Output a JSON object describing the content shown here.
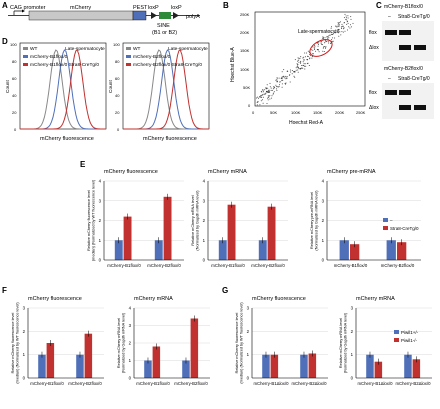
{
  "panel_letters": [
    "A",
    "B",
    "C",
    "D",
    "E",
    "F",
    "G"
  ],
  "colors": {
    "blue": "#4f6fb8",
    "red": "#c0312f",
    "green": "#2e8b3a",
    "grey": "#888888"
  },
  "panelA": {
    "promoter": "CAG promoter",
    "mcherry": "mCherry",
    "pest": "PEST",
    "loxp1": "loxP",
    "loxp2": "loxP",
    "polya": "polyA",
    "sine_line1": "SINE",
    "sine_line2": "(B1 or B2)"
  },
  "panelB": {
    "gate_label": "Late-spermatocyte",
    "ylabel": "Hoechst Blue-A",
    "xlabel": "Hoechst Red-A",
    "ticks": [
      "0",
      "50K",
      "100K",
      "150K",
      "200K",
      "250K"
    ]
  },
  "panelC": {
    "title_top": "mCherry-B1flox/0",
    "title_bottom": "mCherry-B2flox/0",
    "dash": "–",
    "cre": "Stra8-CreTg/0",
    "flox": "flox",
    "dlox": "Δlox"
  },
  "panelD": {
    "plots": [
      {
        "subtitle": "Late-spermatocyte",
        "leg": [
          "WT",
          "mCherry-B1flox/0",
          "mCherry-B1flox/0 Stra8-CreTg/0"
        ]
      },
      {
        "subtitle": "Late-spermatocyte",
        "leg": [
          "WT",
          "mCherry-B2flox/0",
          "mCherry-B2flox/0 Stra8-CreTg/0"
        ]
      }
    ],
    "ylabel": "Count",
    "xlabel": "mCherry fluorescence",
    "yticks": [
      "0",
      "20",
      "40",
      "60",
      "80",
      "100"
    ]
  },
  "chart_data": [
    {
      "type": "bar",
      "panel": "E",
      "title": "mCherry fluorescence",
      "ylabel": "Relative mCherry fluorescence level (median) (Normalized by WT fluorescence level)",
      "categories": [
        "mCherry-B1flox/0",
        "mCherry-B2flox/0"
      ],
      "ylim": [
        0,
        4
      ],
      "yticks": [
        "0",
        "1",
        "2",
        "3",
        "4"
      ],
      "series": [
        {
          "values": [
            1.0,
            1.0
          ]
        },
        {
          "name": "Stra8-CreTg/0",
          "values": [
            2.2,
            3.2
          ]
        }
      ]
    },
    {
      "type": "bar",
      "panel": "E",
      "title": "mCherry mRNA",
      "ylabel": "Relative mCherry mRNA level (Normalized by Gapdh mRNA level)",
      "categories": [
        "mCherry-B1flox/0",
        "mCherry-B2flox/0"
      ],
      "ylim": [
        0,
        4
      ],
      "yticks": [
        "0",
        "1",
        "2",
        "3",
        "4"
      ],
      "series": [
        {
          "values": [
            1.0,
            1.0
          ]
        },
        {
          "name": "Stra8-CreTg/0",
          "values": [
            2.8,
            2.7
          ]
        }
      ]
    },
    {
      "type": "bar",
      "panel": "E",
      "title": "mCherry pre-mRNA",
      "ylabel": "Relative mCherry pre-mRNA level (Normalized by Gapdh mRNA level)",
      "categories": [
        "mCherry-B1flox/0",
        "mCherry-B2flox/0"
      ],
      "ylim": [
        0,
        4
      ],
      "yticks": [
        "0",
        "1",
        "2",
        "3",
        "4"
      ],
      "series": [
        {
          "values": [
            1.0,
            1.0
          ]
        },
        {
          "name": "Stra8-CreTg/0",
          "values": [
            0.8,
            0.9
          ]
        }
      ]
    },
    {
      "type": "bar",
      "panel": "F",
      "title": "mCherry fluorescence",
      "ylabel": "Relative mCherry fluorescence level (median) (Normalized by WT fluorescence level)",
      "categories": [
        "mCherry-B1flox/0",
        "mCherry-B2flox/0"
      ],
      "ylim": [
        0,
        3
      ],
      "yticks": [
        "0",
        "1",
        "2",
        "3"
      ],
      "series": [
        {
          "name": "Piwil1+/-",
          "values": [
            1.0,
            1.0
          ]
        },
        {
          "name": "Piwil1-/-",
          "values": [
            1.5,
            1.9
          ]
        }
      ]
    },
    {
      "type": "bar",
      "panel": "F",
      "title": "mCherry mRNA",
      "ylabel": "Relative mCherry mRNA level (Normalized by Gapdh mRNA level)",
      "categories": [
        "mCherry-B1flox/0",
        "mCherry-B2flox/0"
      ],
      "ylim": [
        0,
        4
      ],
      "yticks": [
        "0",
        "1",
        "2",
        "3",
        "4"
      ],
      "series": [
        {
          "name": "Piwil1+/-",
          "values": [
            1.0,
            1.0
          ]
        },
        {
          "name": "Piwil1-/-",
          "values": [
            1.8,
            3.4
          ]
        }
      ]
    },
    {
      "type": "bar",
      "panel": "G",
      "title": "mCherry fluorescence",
      "ylabel": "Relative mCherry fluorescence level (median) (Normalized by WT fluorescence level)",
      "categories": [
        "mCherry-B1Δlox/0",
        "mCherry-B2Δlox/0"
      ],
      "ylim": [
        0,
        3
      ],
      "yticks": [
        "0",
        "1",
        "2",
        "3"
      ],
      "series": [
        {
          "name": "Piwil1+/-",
          "values": [
            1.0,
            1.0
          ]
        },
        {
          "name": "Piwil1-/-",
          "values": [
            1.0,
            1.05
          ]
        }
      ]
    },
    {
      "type": "bar",
      "panel": "G",
      "title": "mCherry mRNA",
      "ylabel": "Relative mCherry mRNA level (Normalized by Gapdh mRNA level)",
      "categories": [
        "mCherry-B1Δlox/0",
        "mCherry-B2Δlox/0"
      ],
      "ylim": [
        0,
        3
      ],
      "yticks": [
        "0",
        "1",
        "2",
        "3"
      ],
      "series": [
        {
          "name": "Piwil1+/-",
          "values": [
            1.0,
            1.0
          ]
        },
        {
          "name": "Piwil1-/-",
          "values": [
            0.7,
            0.8
          ]
        }
      ]
    }
  ]
}
